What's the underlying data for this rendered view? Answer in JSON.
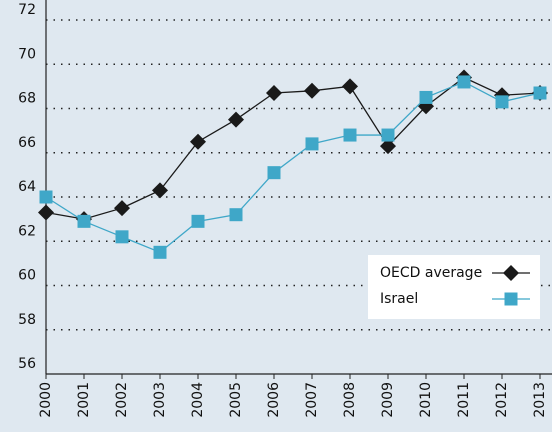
{
  "chart_data": {
    "type": "line",
    "categories": [
      "2000",
      "2001",
      "2002",
      "2003",
      "2004",
      "2005",
      "2006",
      "2007",
      "2008",
      "2009",
      "2010",
      "2011",
      "2012",
      "2013"
    ],
    "series": [
      {
        "name": "OECD average",
        "color": "#1a1a1a",
        "marker": "diamond",
        "values": [
          63.3,
          63.0,
          63.5,
          64.3,
          66.5,
          67.5,
          68.7,
          68.8,
          69.0,
          66.3,
          68.1,
          69.4,
          68.6,
          68.7
        ]
      },
      {
        "name": "Israel",
        "color": "#3fa7c8",
        "marker": "square",
        "values": [
          64.0,
          62.9,
          62.2,
          61.5,
          62.9,
          63.2,
          65.1,
          66.4,
          66.8,
          66.8,
          68.5,
          69.2,
          68.3,
          68.7
        ]
      }
    ],
    "ylim": [
      56,
      72
    ],
    "yticks": [
      56,
      58,
      60,
      62,
      64,
      66,
      68,
      70,
      72
    ],
    "grid": true,
    "legend": "lower right"
  }
}
